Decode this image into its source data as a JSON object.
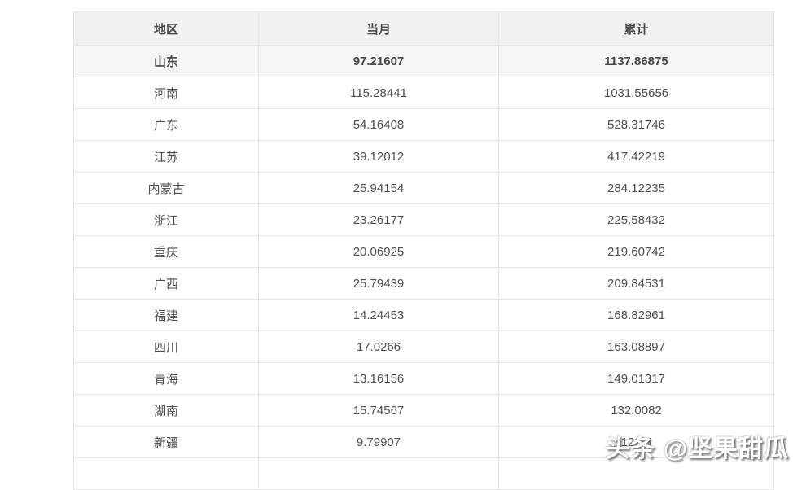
{
  "chart_data": {
    "type": "table",
    "columns": [
      "地区",
      "当月",
      "累计"
    ],
    "rows": [
      [
        "山东",
        "97.21607",
        "1137.86875"
      ],
      [
        "河南",
        "115.28441",
        "1031.55656"
      ],
      [
        "广东",
        "54.16408",
        "528.31746"
      ],
      [
        "江苏",
        "39.12012",
        "417.42219"
      ],
      [
        "内蒙古",
        "25.94154",
        "284.12235"
      ],
      [
        "浙江",
        "23.26177",
        "225.58432"
      ],
      [
        "重庆",
        "20.06925",
        "219.60742"
      ],
      [
        "广西",
        "25.79439",
        "209.84531"
      ],
      [
        "福建",
        "14.24453",
        "168.82961"
      ],
      [
        "四川",
        "17.0266",
        "163.08897"
      ],
      [
        "青海",
        "13.16156",
        "149.01317"
      ],
      [
        "湖南",
        "15.74567",
        "132.0082"
      ],
      [
        "新疆",
        "9.79907",
        "129.5"
      ]
    ],
    "title": "",
    "layout_hints": "header row and first data row shaded light gray; first data row bold; last cumulative value partially obscured by watermark"
  },
  "table": {
    "header": {
      "region": "地区",
      "current_month": "当月",
      "cumulative": "累计"
    },
    "rows": [
      {
        "region": "山东",
        "current_month": "97.21607",
        "cumulative": "1137.86875",
        "bold": true
      },
      {
        "region": "河南",
        "current_month": "115.28441",
        "cumulative": "1031.55656",
        "bold": false
      },
      {
        "region": "广东",
        "current_month": "54.16408",
        "cumulative": "528.31746",
        "bold": false
      },
      {
        "region": "江苏",
        "current_month": "39.12012",
        "cumulative": "417.42219",
        "bold": false
      },
      {
        "region": "内蒙古",
        "current_month": "25.94154",
        "cumulative": "284.12235",
        "bold": false
      },
      {
        "region": "浙江",
        "current_month": "23.26177",
        "cumulative": "225.58432",
        "bold": false
      },
      {
        "region": "重庆",
        "current_month": "20.06925",
        "cumulative": "219.60742",
        "bold": false
      },
      {
        "region": "广西",
        "current_month": "25.79439",
        "cumulative": "209.84531",
        "bold": false
      },
      {
        "region": "福建",
        "current_month": "14.24453",
        "cumulative": "168.82961",
        "bold": false
      },
      {
        "region": "四川",
        "current_month": "17.0266",
        "cumulative": "163.08897",
        "bold": false
      },
      {
        "region": "青海",
        "current_month": "13.16156",
        "cumulative": "149.01317",
        "bold": false
      },
      {
        "region": "湖南",
        "current_month": "15.74567",
        "cumulative": "132.0082",
        "bold": false
      },
      {
        "region": "新疆",
        "current_month": "9.79907",
        "cumulative": "129.5",
        "bold": false
      }
    ]
  },
  "watermark": {
    "text": "头条 @坚果甜瓜"
  },
  "colors": {
    "page_bg": "#ffffff",
    "header_bg": "#f1f1f1",
    "highlight_row_bg": "#f6f6f6",
    "row_bg": "#ffffff",
    "border": "#e5e5e5",
    "text": "#4d4d4d",
    "watermark_text": "#ffffff",
    "watermark_shadow": "#5a5a5a"
  }
}
